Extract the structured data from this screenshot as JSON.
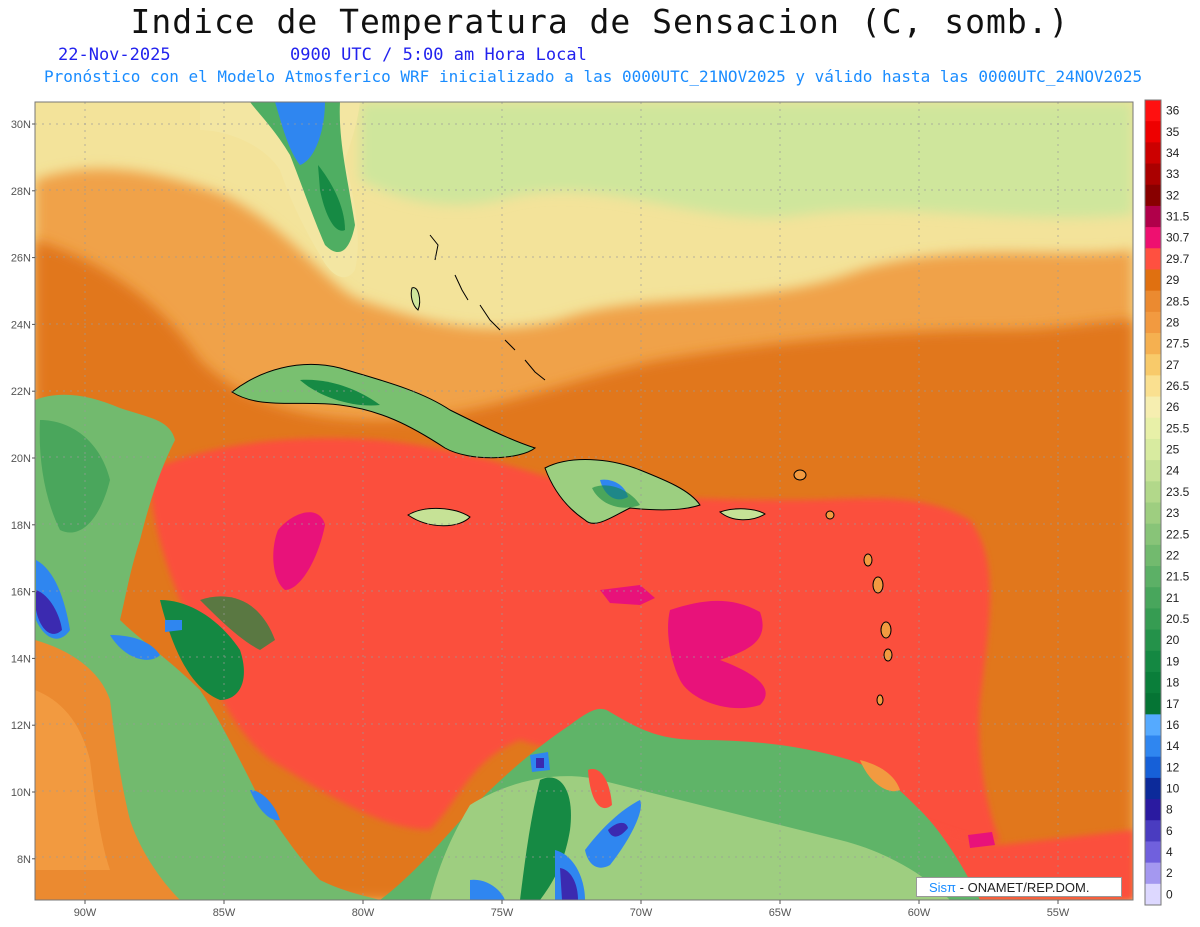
{
  "title": "Indice de Temperatura de Sensacion (C, somb.)",
  "date": "22-Nov-2025",
  "time": "0900 UTC / 5:00 am Hora Local",
  "subtitle": "Pronóstico con el Modelo Atmosferico WRF inicializado a las 0000UTC_21NOV2025 y válido hasta las  0000UTC_24NOV2025",
  "credit_logo": "Sisπ",
  "credit_text": "- ONAMET/REP.DOM.",
  "latitudes": [
    {
      "label": "30N",
      "value": 30
    },
    {
      "label": "28N",
      "value": 28
    },
    {
      "label": "26N",
      "value": 26
    },
    {
      "label": "24N",
      "value": 24
    },
    {
      "label": "22N",
      "value": 22
    },
    {
      "label": "20N",
      "value": 20
    },
    {
      "label": "18N",
      "value": 18
    },
    {
      "label": "16N",
      "value": 16
    },
    {
      "label": "14N",
      "value": 14
    },
    {
      "label": "12N",
      "value": 12
    },
    {
      "label": "10N",
      "value": 10
    },
    {
      "label": "8N",
      "value": 8
    }
  ],
  "longitudes": [
    {
      "label": "90W",
      "value": -90
    },
    {
      "label": "85W",
      "value": -85
    },
    {
      "label": "80W",
      "value": -80
    },
    {
      "label": "75W",
      "value": -75
    },
    {
      "label": "70W",
      "value": -70
    },
    {
      "label": "65W",
      "value": -65
    },
    {
      "label": "60W",
      "value": -60
    },
    {
      "label": "55W",
      "value": -55
    }
  ],
  "legend": [
    {
      "label": "36",
      "color": "#ff1010"
    },
    {
      "label": "35",
      "color": "#ee0000"
    },
    {
      "label": "34",
      "color": "#cc0000"
    },
    {
      "label": "33",
      "color": "#aa0000"
    },
    {
      "label": "32",
      "color": "#880000"
    },
    {
      "label": "31.5",
      "color": "#b0004a"
    },
    {
      "label": "30.7",
      "color": "#ee1070"
    },
    {
      "label": "29.7",
      "color": "#ff5040"
    },
    {
      "label": "29",
      "color": "#e07010"
    },
    {
      "label": "28.5",
      "color": "#eb8a30"
    },
    {
      "label": "28",
      "color": "#f29a40"
    },
    {
      "label": "27.5",
      "color": "#f5b050"
    },
    {
      "label": "27",
      "color": "#f8ca6a"
    },
    {
      "label": "26.5",
      "color": "#fae090"
    },
    {
      "label": "26",
      "color": "#f6eeb0"
    },
    {
      "label": "25.5",
      "color": "#e8f0a8"
    },
    {
      "label": "25",
      "color": "#d8eba0"
    },
    {
      "label": "24",
      "color": "#c6e296"
    },
    {
      "label": "23.5",
      "color": "#b2d88a"
    },
    {
      "label": "23",
      "color": "#9ece80"
    },
    {
      "label": "22.5",
      "color": "#88c478"
    },
    {
      "label": "22",
      "color": "#72ba6e"
    },
    {
      "label": "21.5",
      "color": "#5cb066"
    },
    {
      "label": "21",
      "color": "#48a65c"
    },
    {
      "label": "20.5",
      "color": "#369c52"
    },
    {
      "label": "20",
      "color": "#24924a"
    },
    {
      "label": "19",
      "color": "#148842"
    },
    {
      "label": "18",
      "color": "#0a7e3a"
    },
    {
      "label": "17",
      "color": "#057434"
    },
    {
      "label": "16",
      "color": "#55aaff"
    },
    {
      "label": "14",
      "color": "#2f86f0"
    },
    {
      "label": "12",
      "color": "#1660d8"
    },
    {
      "label": "10",
      "color": "#0c2a9a"
    },
    {
      "label": "8",
      "color": "#2a1aa0"
    },
    {
      "label": "6",
      "color": "#4a3cc0"
    },
    {
      "label": "4",
      "color": "#7060dd"
    },
    {
      "label": "2",
      "color": "#a498f0"
    },
    {
      "label": "0",
      "color": "#ddd8ff"
    }
  ],
  "colors": {
    "ocean_hot": "#fb4f3c",
    "orange": "#e3761c",
    "light_orange": "#f1a34a",
    "cream": "#f7e6a0",
    "land_green": "#5fb468",
    "dark_green": "#168a44",
    "blue": "#2f86f0",
    "purple": "#3b2ab0",
    "magenta": "#e8127a"
  }
}
